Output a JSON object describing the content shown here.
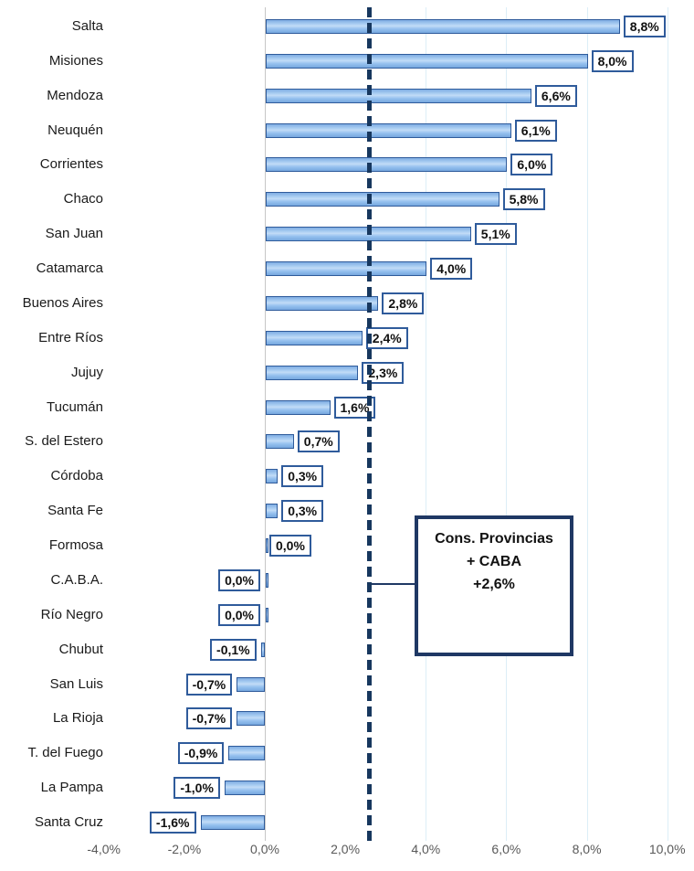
{
  "chart_data": {
    "type": "bar",
    "orientation": "horizontal",
    "title": "",
    "xlabel": "",
    "ylabel": "",
    "xlim": [
      -4,
      10
    ],
    "grid": "vertical-faint",
    "categories": [
      "Salta",
      "Misiones",
      "Mendoza",
      "Neuquén",
      "Corrientes",
      "Chaco",
      "San Juan",
      "Catamarca",
      "Buenos Aires",
      "Entre Ríos",
      "Jujuy",
      "Tucumán",
      "S. del Estero",
      "Córdoba",
      "Santa Fe",
      "Formosa",
      "C.A.B.A.",
      "Río Negro",
      "Chubut",
      "San Luis",
      "La Rioja",
      "T. del Fuego",
      "La Pampa",
      "Santa Cruz"
    ],
    "values": [
      8.8,
      8.0,
      6.6,
      6.1,
      6.0,
      5.8,
      5.1,
      4.0,
      2.8,
      2.4,
      2.3,
      1.6,
      0.7,
      0.3,
      0.3,
      0.0,
      0.0,
      0.0,
      -0.1,
      -0.7,
      -0.7,
      -0.9,
      -1.0,
      -1.6
    ],
    "value_labels": [
      "8,8%",
      "8,0%",
      "6,6%",
      "6,1%",
      "6,0%",
      "5,8%",
      "5,1%",
      "4,0%",
      "2,8%",
      "2,4%",
      "2,3%",
      "1,6%",
      "0,7%",
      "0,3%",
      "0,3%",
      "0,0%",
      "0,0%",
      "0,0%",
      "-0,1%",
      "-0,7%",
      "-0,7%",
      "-0,9%",
      "-1,0%",
      "-1,6%"
    ],
    "label_sides": [
      "right",
      "right",
      "right",
      "right",
      "right",
      "right",
      "right",
      "right",
      "right",
      "right",
      "right",
      "right",
      "right",
      "right",
      "right",
      "right",
      "left",
      "left",
      "left",
      "left",
      "left",
      "left",
      "left",
      "left"
    ],
    "x_ticks": [
      {
        "value": -4,
        "label": "-4,0%"
      },
      {
        "value": -2,
        "label": "-2,0%"
      },
      {
        "value": 0,
        "label": "0,0%"
      },
      {
        "value": 2,
        "label": "2,0%"
      },
      {
        "value": 4,
        "label": "4,0%"
      },
      {
        "value": 6,
        "label": "6,0%"
      },
      {
        "value": 8,
        "label": "8,0%"
      },
      {
        "value": 10,
        "label": "10,0%"
      }
    ],
    "gridlines_at": [
      4,
      6,
      8,
      10
    ],
    "reference_line": {
      "value": 2.6,
      "style": "dashed"
    },
    "annotation": {
      "line1": "Cons. Provincias",
      "line2": "+ CABA",
      "line3": "+2,6%"
    },
    "colors": {
      "bar_fill": "#94c0ee",
      "bar_border": "#2f5b9b",
      "value_box_border": "#2f5b9b",
      "reference_line": "#17375e",
      "annotation_border": "#1f3864",
      "axis_text": "#595959",
      "gridline": "#dceef7",
      "zero_line": "#c6c6c6"
    }
  }
}
